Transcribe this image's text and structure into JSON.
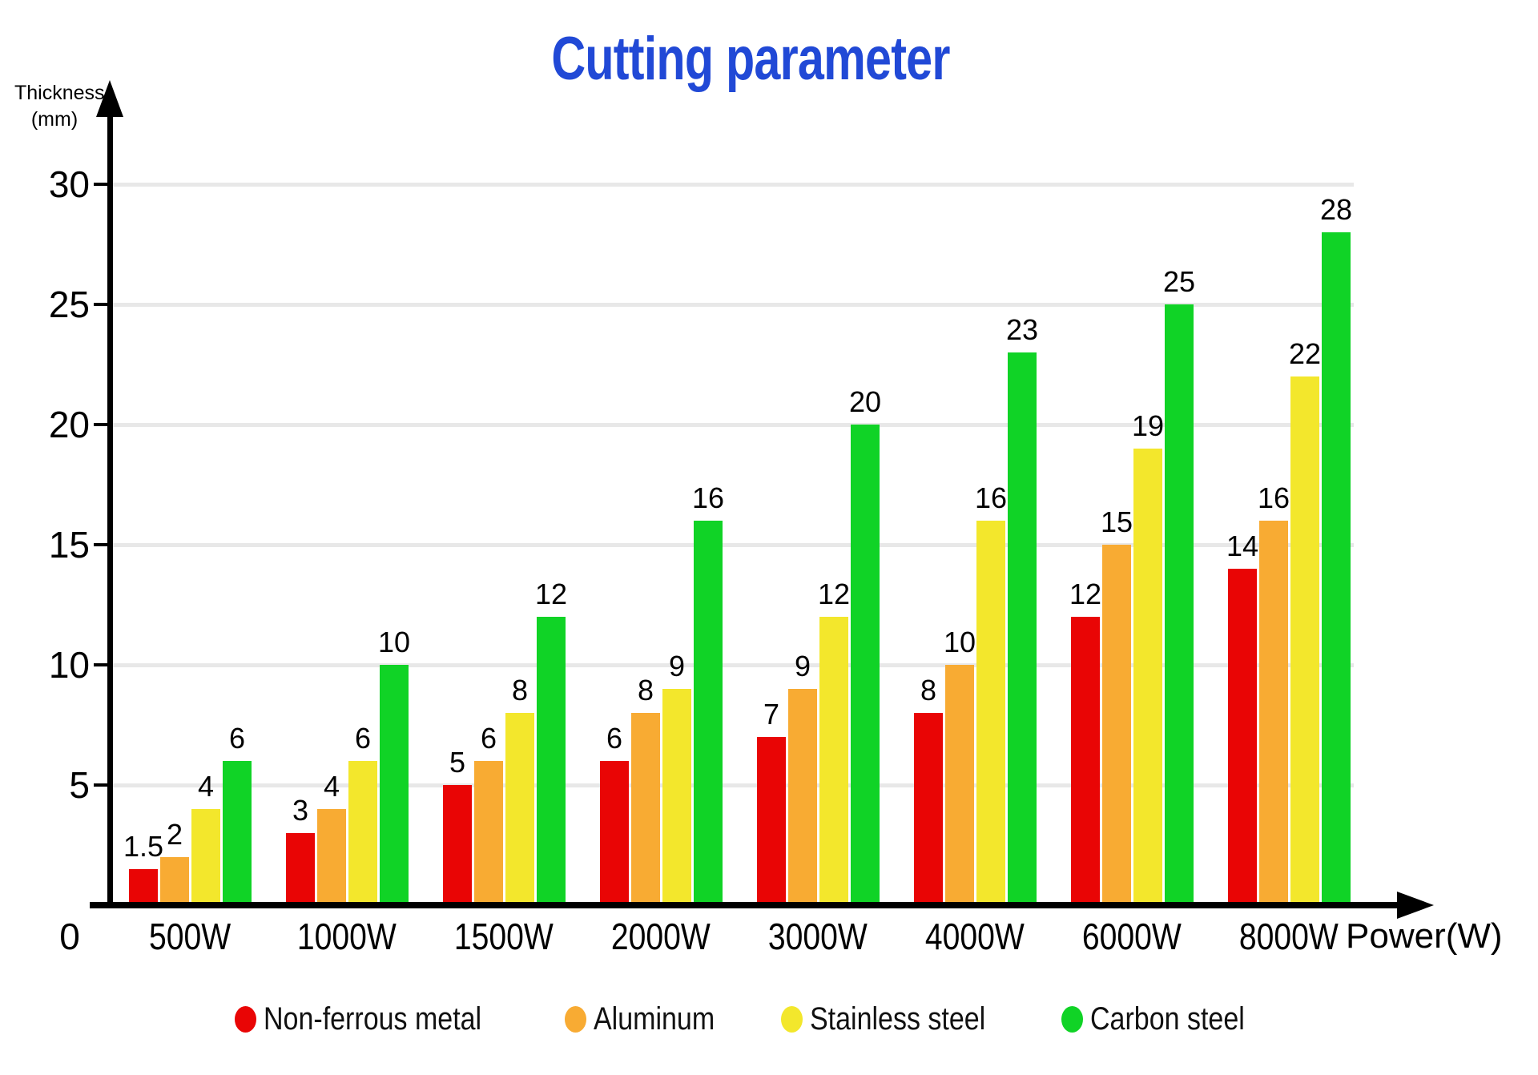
{
  "page": {
    "background": "#ffffff"
  },
  "chart_data": {
    "type": "bar",
    "title": "Cutting parameter",
    "title_color": "#2149d6",
    "ylabel_line1": "Thickness",
    "ylabel_line2": "(mm)",
    "xlabel": "Power(W)",
    "origin_label": "0",
    "categories": [
      "500W",
      "1000W",
      "1500W",
      "2000W",
      "3000W",
      "4000W",
      "6000W",
      "8000W"
    ],
    "series": [
      {
        "name": "Non-ferrous metal",
        "color": "#e90505",
        "values": [
          1.5,
          3,
          5,
          6,
          7,
          8,
          12,
          14
        ]
      },
      {
        "name": "Aluminum",
        "color": "#f8ab33",
        "values": [
          2,
          4,
          6,
          8,
          9,
          10,
          15,
          16
        ]
      },
      {
        "name": "Stainless steel",
        "color": "#f3e72c",
        "values": [
          4,
          6,
          8,
          9,
          12,
          16,
          19,
          22
        ]
      },
      {
        "name": "Carbon steel",
        "color": "#10d326",
        "values": [
          6,
          10,
          12,
          16,
          20,
          23,
          25,
          28
        ]
      }
    ],
    "ylim": [
      0,
      30
    ],
    "yticks": [
      5,
      10,
      15,
      20,
      25,
      30
    ],
    "grid": true,
    "gridline_color": "#e8e8e8",
    "axis_color": "#000000",
    "legend_position": "bottom"
  }
}
